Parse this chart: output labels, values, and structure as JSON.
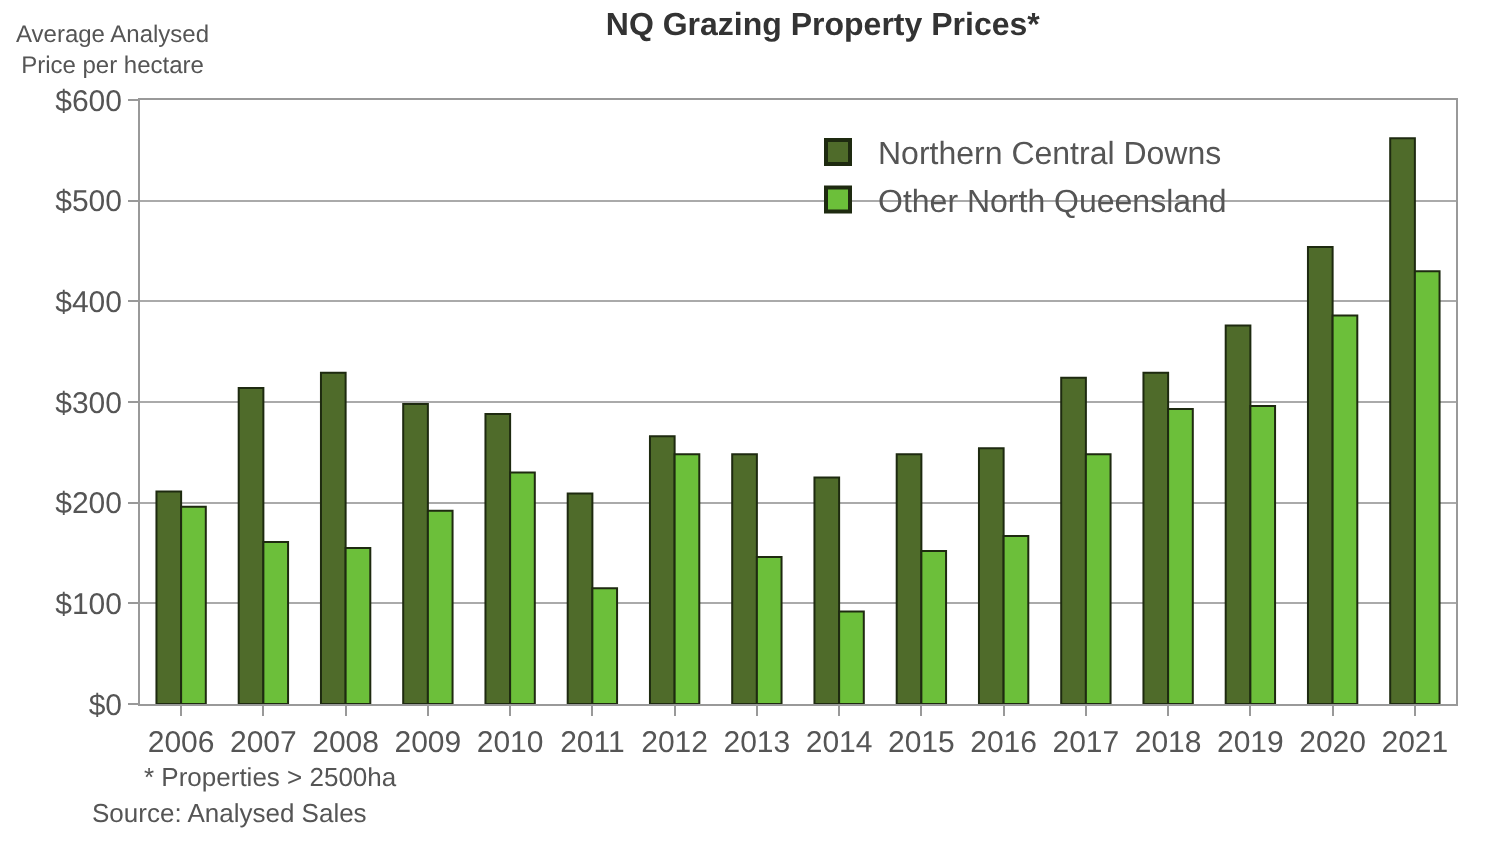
{
  "chart_data": {
    "type": "bar",
    "title": "NQ Grazing Property Prices*",
    "ylabel": "Average Analysed\nPrice per hectare",
    "categories": [
      "2006",
      "2007",
      "2008",
      "2009",
      "2010",
      "2011",
      "2012",
      "2013",
      "2014",
      "2015",
      "2016",
      "2017",
      "2018",
      "2019",
      "2020",
      "2021"
    ],
    "series": [
      {
        "name": "Northern Central Downs",
        "color": "#4f6b2a",
        "values": [
          211,
          314,
          329,
          298,
          288,
          209,
          266,
          248,
          225,
          248,
          254,
          324,
          329,
          376,
          454,
          562
        ]
      },
      {
        "name": "Other North Queensland",
        "color": "#6cbf3a",
        "values": [
          196,
          161,
          155,
          192,
          230,
          115,
          248,
          146,
          92,
          152,
          167,
          248,
          293,
          296,
          386,
          430
        ]
      }
    ],
    "ylim": [
      0,
      600
    ],
    "yticks": [
      {
        "value": 0,
        "label": "$0"
      },
      {
        "value": 100,
        "label": "$100"
      },
      {
        "value": 200,
        "label": "$200"
      },
      {
        "value": 300,
        "label": "$300"
      },
      {
        "value": 400,
        "label": "$400"
      },
      {
        "value": 500,
        "label": "$500"
      },
      {
        "value": 600,
        "label": "$600"
      }
    ],
    "grid": "y",
    "legend": "top",
    "annotations": [
      "* Properties > 2500ha",
      "Source: Analysed Sales"
    ]
  }
}
